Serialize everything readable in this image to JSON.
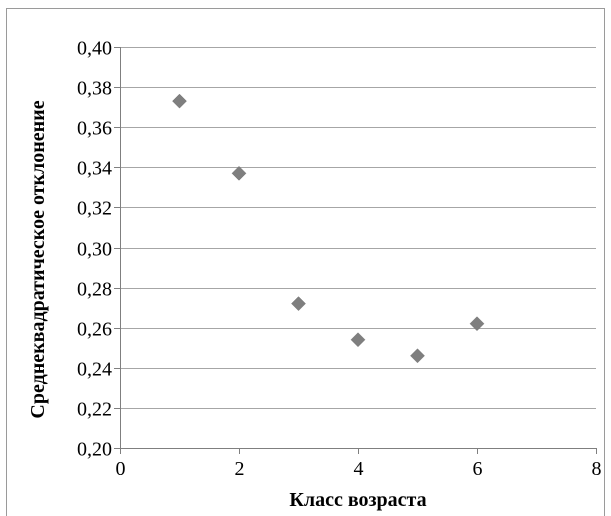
{
  "chart_data": {
    "type": "scatter",
    "title": "",
    "xlabel": "Класс возраста",
    "ylabel": "Среднеквадратическое отклонение",
    "xlim": [
      0,
      8
    ],
    "ylim": [
      0.2,
      0.4
    ],
    "x_ticks": [
      0,
      2,
      4,
      6,
      8
    ],
    "y_ticks": [
      0.2,
      0.22,
      0.24,
      0.26,
      0.28,
      0.3,
      0.32,
      0.34,
      0.36,
      0.38,
      0.4
    ],
    "x_tick_labels": [
      "0",
      "2",
      "4",
      "6",
      "8"
    ],
    "y_tick_labels": [
      "0,20",
      "0,22",
      "0,24",
      "0,26",
      "0,28",
      "0,30",
      "0,32",
      "0,34",
      "0,36",
      "0,38",
      "0,40"
    ],
    "grid": "horizontal",
    "legend": "none",
    "marker": "diamond",
    "marker_color": "#7f7f7f",
    "points": [
      {
        "x": 1,
        "y": 0.373
      },
      {
        "x": 2,
        "y": 0.337
      },
      {
        "x": 3,
        "y": 0.272
      },
      {
        "x": 4,
        "y": 0.254
      },
      {
        "x": 5,
        "y": 0.246
      },
      {
        "x": 6,
        "y": 0.262
      }
    ]
  }
}
